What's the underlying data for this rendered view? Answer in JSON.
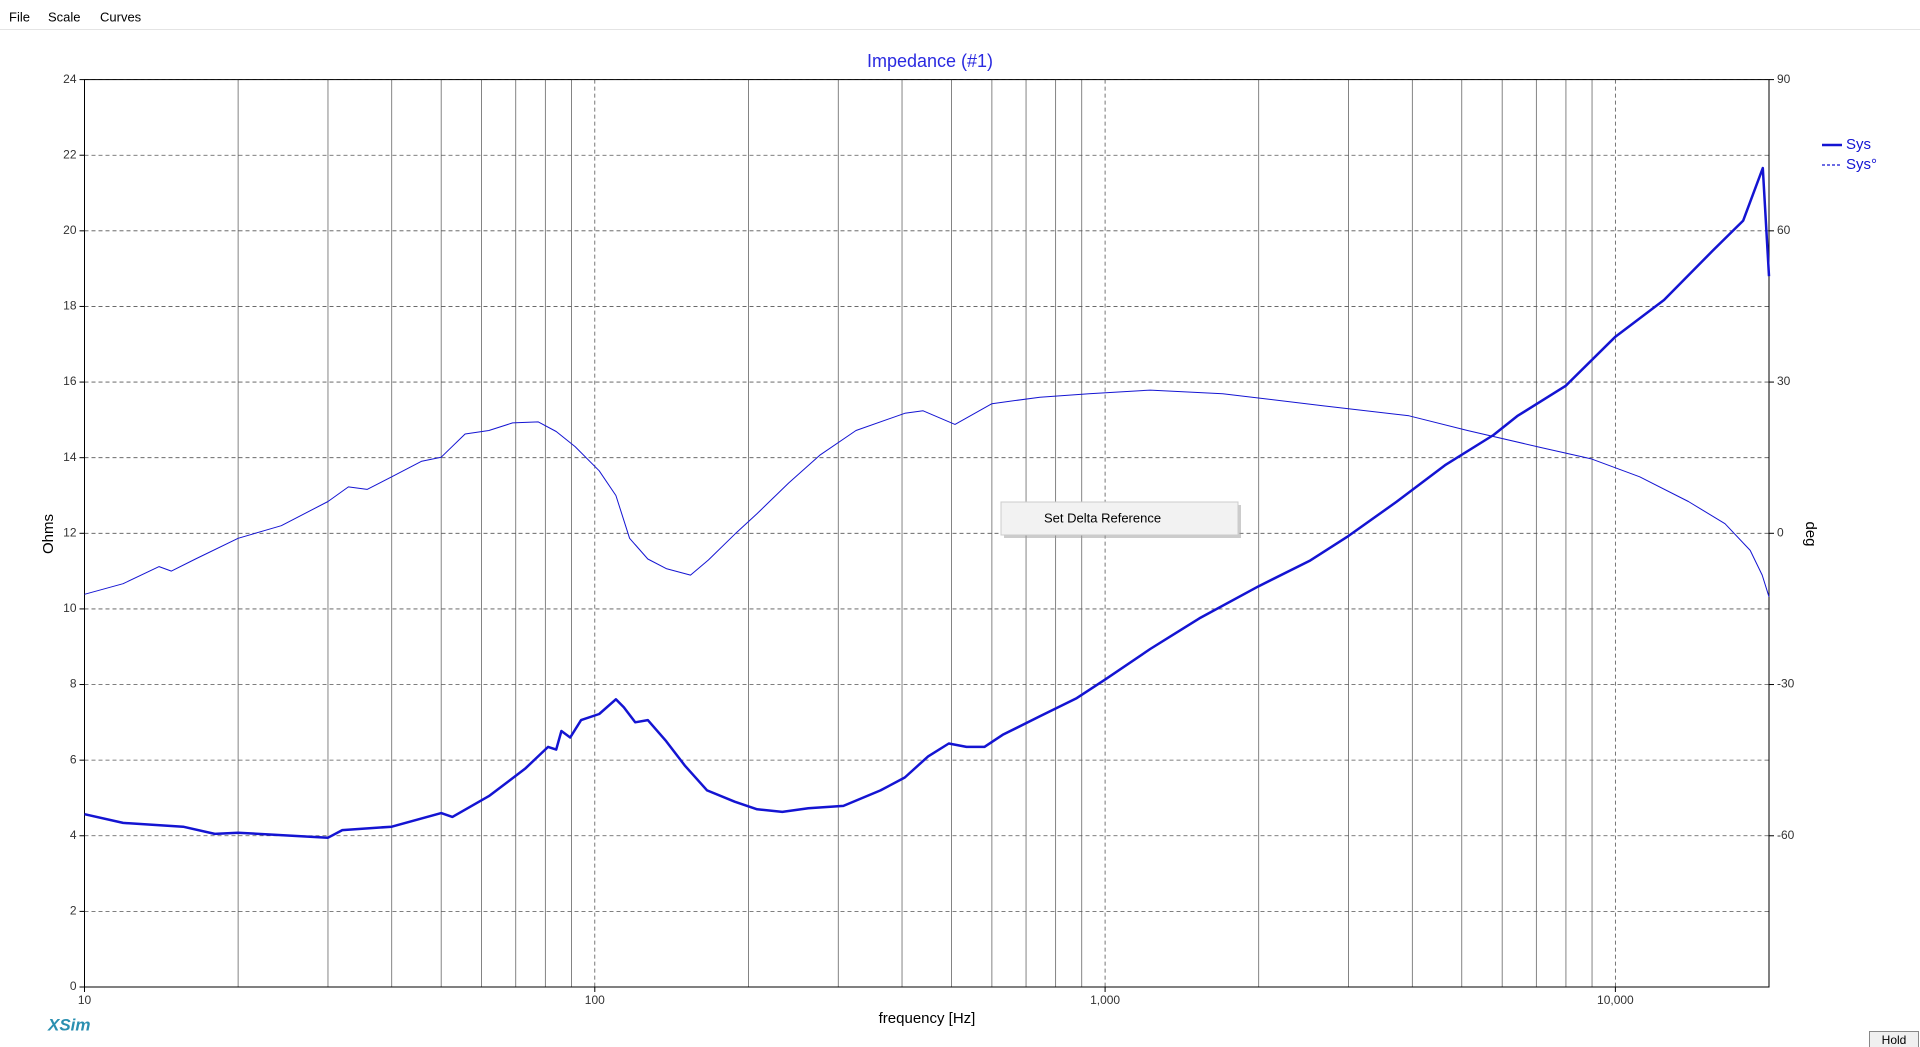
{
  "menu": [
    "File",
    "Scale",
    "Curves"
  ],
  "context_menu": "Set Delta Reference",
  "app_name": "XSim",
  "button": "Hold",
  "chart_data": {
    "type": "line",
    "title": "Impedance (#1)",
    "x_label": "frequency [Hz]",
    "y_label": "Ohms",
    "y2_label": "deg",
    "log_x": true,
    "grid": true,
    "legend": "top-right",
    "xlim": [
      10,
      20000
    ],
    "xticks": [
      10,
      100,
      {
        "value": 1000,
        "label": "1,000"
      },
      {
        "value": 10000,
        "label": "10,000"
      }
    ],
    "ylim": [
      0,
      24
    ],
    "yticks": [
      0,
      2,
      4,
      6,
      8,
      10,
      12,
      14,
      16,
      18,
      20,
      22,
      24
    ],
    "y2lim": [
      -90,
      90
    ],
    "y2ticks": [
      -60,
      -30,
      0,
      30,
      60,
      90
    ],
    "series": [
      {
        "name": "Sys",
        "color": "#1414d2",
        "line_width": 2.5,
        "dashed": false,
        "x": [
          10,
          11.9,
          15.6,
          18,
          20,
          30,
          32,
          40,
          50,
          52.6,
          62,
          73,
          81,
          84,
          86,
          89.5,
          94,
          102,
          110,
          114,
          120,
          127,
          138,
          150,
          166,
          188,
          208,
          233,
          262,
          307,
          363,
          405,
          450,
          494,
          535,
          580,
          630,
          745,
          880,
          1000,
          1226,
          1530,
          2000,
          2515,
          2976,
          3722,
          4635,
          5770,
          6420,
          7990,
          10000,
          12450,
          15500,
          17800,
          19450,
          20000
        ],
        "values": [
          4.57,
          4.34,
          4.24,
          4.05,
          4.08,
          3.95,
          4.15,
          4.24,
          4.6,
          4.5,
          5.05,
          5.77,
          6.35,
          6.28,
          6.77,
          6.6,
          7.06,
          7.22,
          7.61,
          7.4,
          7.0,
          7.06,
          6.5,
          5.86,
          5.2,
          4.9,
          4.7,
          4.63,
          4.73,
          4.79,
          5.2,
          5.54,
          6.1,
          6.44,
          6.35,
          6.35,
          6.67,
          7.16,
          7.64,
          8.13,
          8.94,
          9.75,
          10.6,
          11.27,
          11.9,
          12.83,
          13.8,
          14.6,
          15.1,
          15.9,
          17.2,
          18.17,
          19.47,
          20.27,
          21.66,
          18.8
        ]
      },
      {
        "name": "Sys°",
        "color": "#1414d2",
        "line_width": 1,
        "dashed": true,
        "axis": "y2",
        "x": [
          10,
          11.9,
          14,
          14.8,
          16.5,
          20,
          24.3,
          30,
          32.9,
          35.8,
          40,
          45.8,
          50,
          55.7,
          62,
          69,
          77.5,
          84,
          91.5,
          102,
          110,
          117,
          127,
          138,
          154,
          167,
          188,
          208,
          240,
          276,
          325,
          405,
          440,
          508,
          600,
          745,
          930,
          1226,
          1700,
          2670,
          3940,
          5130,
          7160,
          8950,
          11160,
          13900,
          16400,
          18370,
          19400,
          20000
        ],
        "values": [
          -12.1,
          -10.0,
          -6.6,
          -7.5,
          -5.1,
          -1.0,
          1.5,
          6.3,
          9.2,
          8.7,
          11.2,
          14.3,
          15.1,
          19.7,
          20.4,
          21.9,
          22.1,
          20.2,
          17.2,
          12.4,
          7.5,
          -1.0,
          -5.1,
          -7.0,
          -8.3,
          -5.3,
          -0.2,
          3.9,
          10.0,
          15.5,
          20.4,
          23.8,
          24.3,
          21.6,
          25.7,
          27.0,
          27.7,
          28.4,
          27.7,
          25.3,
          23.3,
          20.4,
          17.0,
          14.8,
          11.2,
          6.3,
          1.9,
          -3.4,
          -8.3,
          -12.6
        ]
      }
    ]
  }
}
